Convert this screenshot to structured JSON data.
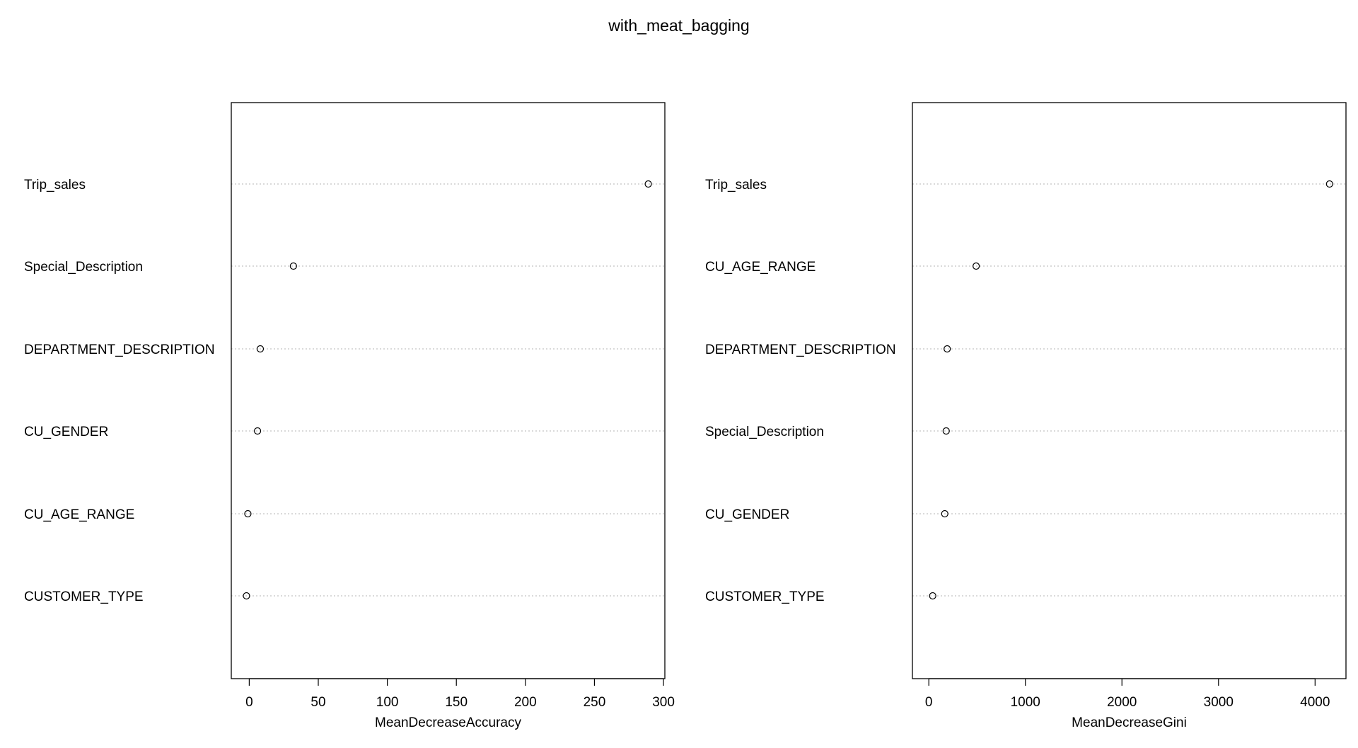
{
  "title": "with_meat_bagging",
  "chart_data": [
    {
      "type": "scatter",
      "subtype": "dotchart",
      "xlabel": "MeanDecreaseAccuracy",
      "xlim": [
        -13,
        301
      ],
      "ticks": [
        0,
        50,
        100,
        150,
        200,
        250,
        300
      ],
      "tick_labels": [
        "0",
        "50",
        "100",
        "150",
        "200",
        "250",
        "300"
      ],
      "grid": "dotted horizontal guide lines",
      "categories": [
        "Trip_sales",
        "Special_Description",
        "DEPARTMENT_DESCRIPTION",
        "CU_GENDER",
        "CU_AGE_RANGE",
        "CUSTOMER_TYPE"
      ],
      "values": [
        289,
        32,
        8,
        6,
        -1,
        -2
      ]
    },
    {
      "type": "scatter",
      "subtype": "dotchart",
      "xlabel": "MeanDecreaseGini",
      "xlim": [
        -170,
        4320
      ],
      "ticks": [
        0,
        1000,
        2000,
        3000,
        4000
      ],
      "tick_labels": [
        "0",
        "1000",
        "2000",
        "3000",
        "4000"
      ],
      "grid": "dotted horizontal guide lines",
      "categories": [
        "Trip_sales",
        "CU_AGE_RANGE",
        "DEPARTMENT_DESCRIPTION",
        "Special_Description",
        "CU_GENDER",
        "CUSTOMER_TYPE"
      ],
      "values": [
        4150,
        490,
        190,
        180,
        165,
        40
      ]
    }
  ]
}
